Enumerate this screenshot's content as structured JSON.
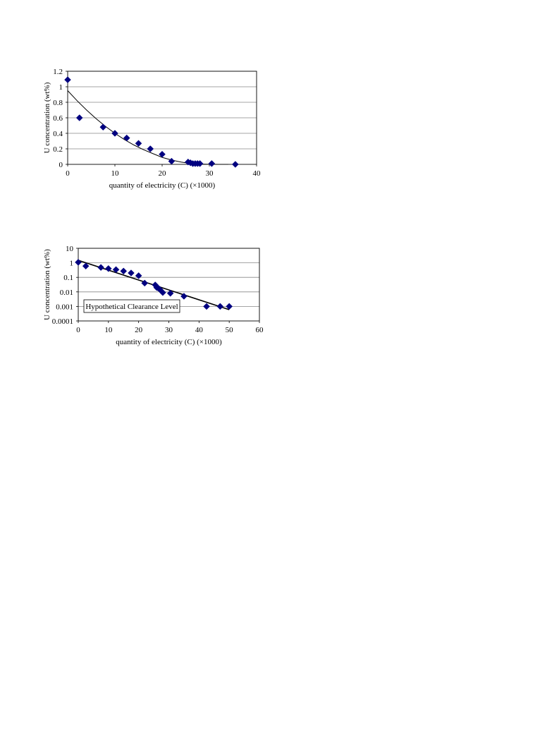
{
  "chart_data": [
    {
      "type": "scatter",
      "xlabel": "quantity of electricity  (C) (×1000)",
      "ylabel": "U concentration (wt%)",
      "xlim": [
        0,
        40
      ],
      "ylim": [
        0,
        1.2
      ],
      "x_ticks": [
        0,
        10,
        20,
        30,
        40
      ],
      "y_ticks": [
        0,
        0.2,
        0.4,
        0.6,
        0.8,
        1,
        1.2
      ],
      "x_tick_labels": [
        "0",
        "10",
        "20",
        "30",
        "40"
      ],
      "y_tick_labels": [
        "0",
        "0.2",
        "0.4",
        "0.6",
        "0.8",
        "1",
        "1.2"
      ],
      "y_scale": "linear",
      "grid": "horizontal",
      "marker_color": "#000080",
      "series": [
        {
          "x": [
            0,
            2.5,
            7.5,
            10,
            12.5,
            15,
            17.5,
            20,
            22,
            25.5,
            26,
            26.5,
            27,
            27.5,
            28,
            30.5,
            35.5
          ],
          "y": [
            1.09,
            0.6,
            0.48,
            0.4,
            0.34,
            0.27,
            0.2,
            0.13,
            0.04,
            0.03,
            0.02,
            0.01,
            0.01,
            0.01,
            0.01,
            0.01,
            0.0
          ]
        }
      ],
      "trendline": {
        "x": [
          0,
          2,
          4,
          6,
          8,
          10,
          12,
          14,
          16,
          18,
          20,
          22,
          24,
          26,
          28,
          30,
          32,
          34
        ],
        "y": [
          0.95,
          0.82,
          0.7,
          0.59,
          0.49,
          0.4,
          0.32,
          0.25,
          0.19,
          0.14,
          0.09,
          0.055,
          0.03,
          0.012,
          0.004,
          0.001,
          0.0,
          0.0
        ]
      }
    },
    {
      "type": "scatter",
      "xlabel": "quantity of electricity (C) (×1000)",
      "ylabel": "U concentration (wt%)",
      "xlim": [
        0,
        60
      ],
      "ylim": [
        0.0001,
        10
      ],
      "x_ticks": [
        0,
        10,
        20,
        30,
        40,
        50,
        60
      ],
      "y_ticks": [
        0.0001,
        0.001,
        0.01,
        0.1,
        1,
        10
      ],
      "x_tick_labels": [
        "0",
        "10",
        "20",
        "30",
        "40",
        "50",
        "60"
      ],
      "y_tick_labels": [
        "0.0001",
        "0.001",
        "0.01",
        "0.1",
        "1",
        "10"
      ],
      "y_scale": "log",
      "grid": "horizontal",
      "marker_color": "#000080",
      "annotation": "Hypothetical Clearance Level",
      "series": [
        {
          "x": [
            0,
            2.5,
            7.5,
            10,
            12.5,
            15,
            17.5,
            20,
            22,
            25.5,
            26,
            26.5,
            27,
            28,
            30.5,
            35,
            42.5,
            47,
            50
          ],
          "y": [
            1.09,
            0.6,
            0.48,
            0.4,
            0.34,
            0.27,
            0.2,
            0.13,
            0.04,
            0.03,
            0.02,
            0.018,
            0.015,
            0.009,
            0.008,
            0.005,
            0.001,
            0.001,
            0.001
          ]
        }
      ],
      "trendline": {
        "x": [
          0,
          50
        ],
        "y": [
          1.5,
          0.0006
        ]
      }
    }
  ]
}
